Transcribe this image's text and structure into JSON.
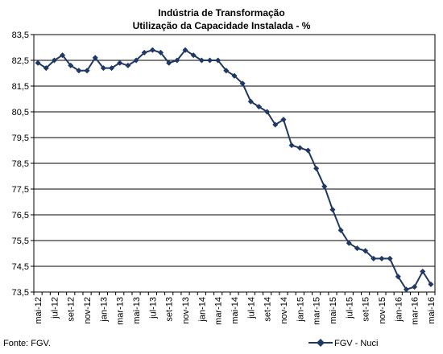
{
  "chart_data": {
    "type": "line",
    "title": "Indústria de Transformação",
    "subtitle": "Utilização da Capacidade Instalada - %",
    "xlabel": "",
    "ylabel": "",
    "ylim": [
      73.5,
      83.5
    ],
    "yticks": [
      "83,5",
      "82,5",
      "81,5",
      "80,5",
      "79,5",
      "78,5",
      "77,5",
      "76,5",
      "75,5",
      "74,5",
      "73,5"
    ],
    "xticks": [
      "mai-12",
      "jul-12",
      "set-12",
      "nov-12",
      "jan-13",
      "mar-13",
      "mai-13",
      "jul-13",
      "set-13",
      "nov-13",
      "jan-14",
      "mar-14",
      "mai-14",
      "jul-14",
      "set-14",
      "nov-14",
      "jan-15",
      "mar-15",
      "mai-15",
      "jul-15",
      "set-15",
      "nov-15",
      "jan-16",
      "mar-16",
      "mai-16"
    ],
    "grid": true,
    "legend_position": "bottom-right",
    "source_note": "Fonte: FGV.",
    "color": "#1f3864",
    "series": [
      {
        "name": "FGV - Nuci",
        "x": [
          "mai-12",
          "jun-12",
          "jul-12",
          "ago-12",
          "set-12",
          "out-12",
          "nov-12",
          "dez-12",
          "jan-13",
          "fev-13",
          "mar-13",
          "abr-13",
          "mai-13",
          "jun-13",
          "jul-13",
          "ago-13",
          "set-13",
          "out-13",
          "nov-13",
          "dez-13",
          "jan-14",
          "fev-14",
          "mar-14",
          "abr-14",
          "mai-14",
          "jun-14",
          "jul-14",
          "ago-14",
          "set-14",
          "out-14",
          "nov-14",
          "dez-14",
          "jan-15",
          "fev-15",
          "mar-15",
          "abr-15",
          "mai-15",
          "jun-15",
          "jul-15",
          "ago-15",
          "set-15",
          "out-15",
          "nov-15",
          "dez-15",
          "jan-16",
          "fev-16",
          "mar-16",
          "abr-16",
          "mai-16"
        ],
        "values": [
          82.4,
          82.2,
          82.5,
          82.7,
          82.3,
          82.1,
          82.1,
          82.6,
          82.2,
          82.2,
          82.4,
          82.3,
          82.5,
          82.8,
          82.9,
          82.8,
          82.4,
          82.5,
          82.9,
          82.7,
          82.5,
          82.5,
          82.5,
          82.1,
          81.9,
          81.6,
          80.9,
          80.7,
          80.5,
          80.0,
          80.2,
          79.2,
          79.1,
          79.0,
          78.3,
          77.6,
          76.7,
          75.9,
          75.4,
          75.2,
          75.1,
          74.8,
          74.8,
          74.8,
          74.1,
          73.6,
          73.7,
          74.3,
          73.8
        ]
      }
    ]
  }
}
